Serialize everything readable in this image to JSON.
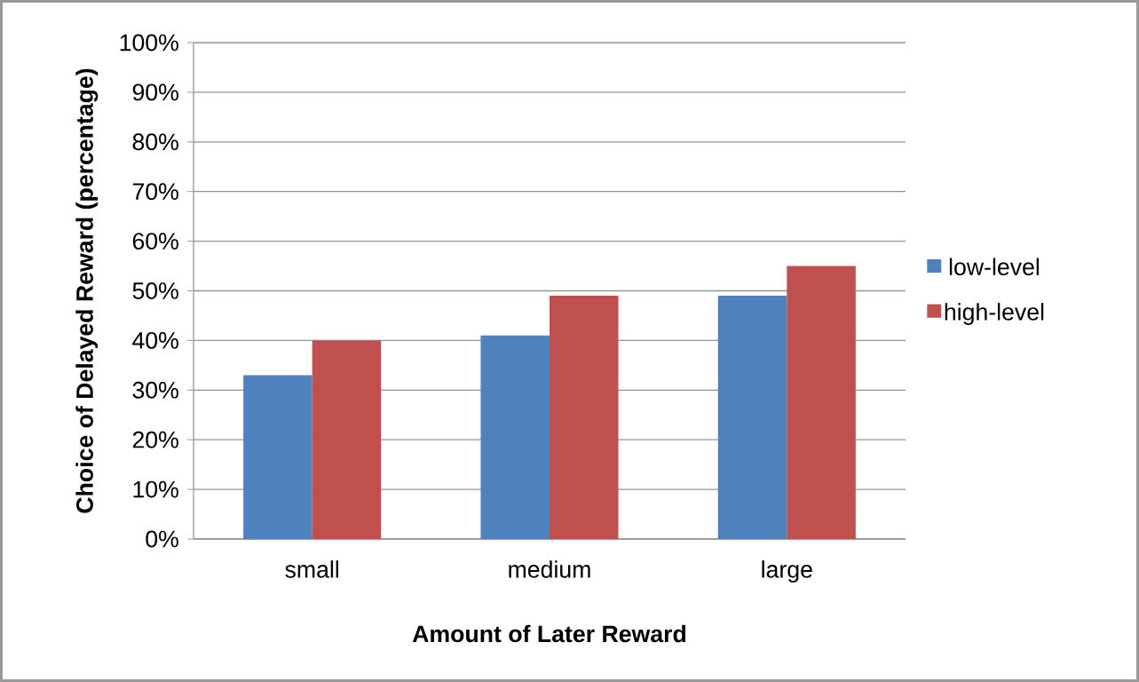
{
  "chart_data": {
    "type": "bar",
    "xlabel": "Amount of Later Reward",
    "ylabel": "Choice of Delayed Reward (percentage)",
    "categories": [
      "small",
      "medium",
      "large"
    ],
    "series": [
      {
        "name": "low-level",
        "color": "#4f81bd",
        "values": [
          33,
          41,
          49
        ]
      },
      {
        "name": "high-level",
        "color": "#c0504d",
        "values": [
          40,
          49,
          55
        ]
      }
    ],
    "ylim": [
      0,
      100
    ],
    "yticks": [
      {
        "value": 0,
        "label": "0%"
      },
      {
        "value": 10,
        "label": "10%"
      },
      {
        "value": 20,
        "label": "20%"
      },
      {
        "value": 30,
        "label": "30%"
      },
      {
        "value": 40,
        "label": "40%"
      },
      {
        "value": 50,
        "label": "50%"
      },
      {
        "value": 60,
        "label": "60%"
      },
      {
        "value": 70,
        "label": "70%"
      },
      {
        "value": 80,
        "label": "80%"
      },
      {
        "value": 90,
        "label": "90%"
      },
      {
        "value": 100,
        "label": "100%"
      }
    ],
    "grid": "y",
    "legend": "right"
  }
}
